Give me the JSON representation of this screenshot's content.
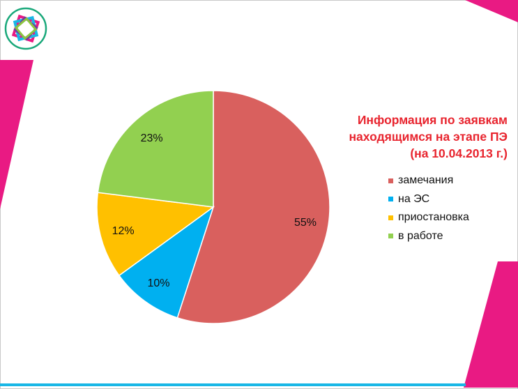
{
  "chart_data": {
    "type": "pie",
    "title_lines": [
      "Информация по заявкам",
      "находящимся на этапе ПЭ",
      "(на 10.04.2013 г.)"
    ],
    "categories": [
      "замечания",
      "на ЭС",
      "приостановка",
      "в работе"
    ],
    "values": [
      55,
      10,
      12,
      23
    ],
    "value_labels": [
      "55%",
      "10%",
      "12%",
      "23%"
    ],
    "colors": [
      "#d9605e",
      "#00b0f0",
      "#ffc000",
      "#92d050"
    ],
    "legend_position": "right"
  },
  "decor": {
    "accent_color": "#e91a83",
    "line_color": "#19b7e6"
  }
}
